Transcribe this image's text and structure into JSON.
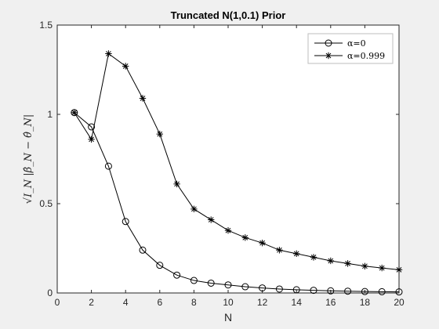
{
  "chart_data": {
    "type": "line",
    "title": "Truncated N(1,0.1) Prior",
    "xlabel": "N",
    "ylabel": "√I_N |β̂_N − θ̂_N|",
    "xlim": [
      0,
      20
    ],
    "ylim": [
      0,
      1.5
    ],
    "x_ticks": [
      "0",
      "2",
      "4",
      "6",
      "8",
      "10",
      "12",
      "14",
      "16",
      "18",
      "20"
    ],
    "y_ticks": [
      "0",
      "0.5",
      "1",
      "1.5"
    ],
    "legend_position": "top-right",
    "grid": false,
    "x": [
      1,
      2,
      3,
      4,
      5,
      6,
      7,
      8,
      9,
      10,
      11,
      12,
      13,
      14,
      15,
      16,
      17,
      18,
      19,
      20
    ],
    "series": [
      {
        "name": "α=0",
        "marker": "circle",
        "color": "#000000",
        "values": [
          1.01,
          0.93,
          0.71,
          0.4,
          0.24,
          0.155,
          0.1,
          0.07,
          0.055,
          0.045,
          0.035,
          0.028,
          0.022,
          0.018,
          0.015,
          0.012,
          0.01,
          0.008,
          0.007,
          0.006
        ]
      },
      {
        "name": "α=0.999",
        "marker": "star",
        "color": "#000000",
        "values": [
          1.01,
          0.86,
          1.34,
          1.27,
          1.09,
          0.89,
          0.61,
          0.47,
          0.41,
          0.35,
          0.31,
          0.28,
          0.24,
          0.22,
          0.2,
          0.18,
          0.165,
          0.15,
          0.14,
          0.13
        ]
      }
    ]
  }
}
